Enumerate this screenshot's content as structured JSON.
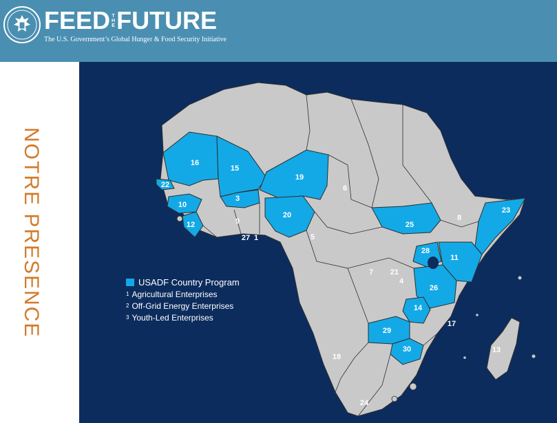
{
  "header": {
    "logo_feed": "FEED",
    "logo_the": [
      "T",
      "H",
      "E"
    ],
    "logo_future": "FUTURE",
    "tagline": "The U.S. Government’s Global Hunger & Food Security Initiative",
    "seal_icon": "us-great-seal-icon",
    "background": "#4a8fb1"
  },
  "side_title": "NOTRE PRESENCE",
  "colors": {
    "ocean": "#0c2c5d",
    "program_country": "#13a9e6",
    "other_country": "#c9c9c9",
    "title_orange": "#d37a2a"
  },
  "legend": {
    "program": "USADF Country Program",
    "notes": [
      {
        "mark": "1",
        "text": "Agricultural Enterprises"
      },
      {
        "mark": "2",
        "text": "Off-Grid Energy Enterprises"
      },
      {
        "mark": "3",
        "text": "Youth-Led Enterprises"
      }
    ]
  },
  "labels": {
    "n1": "1",
    "n3": "3",
    "n4": "4",
    "n5": "5",
    "n6": "6",
    "n7": "7",
    "n8": "8",
    "n9": "9",
    "n10": "10",
    "n11": "11",
    "n12": "12",
    "n13": "13",
    "n14": "14",
    "n15": "15",
    "n16": "16",
    "n17": "17",
    "n18": "18",
    "n19": "19",
    "n20": "20",
    "n21": "21",
    "n22": "22",
    "n23": "23",
    "n24": "24",
    "n25": "25",
    "n26": "26",
    "n27": "27",
    "n28": "28",
    "n29": "29",
    "n30": "30"
  }
}
